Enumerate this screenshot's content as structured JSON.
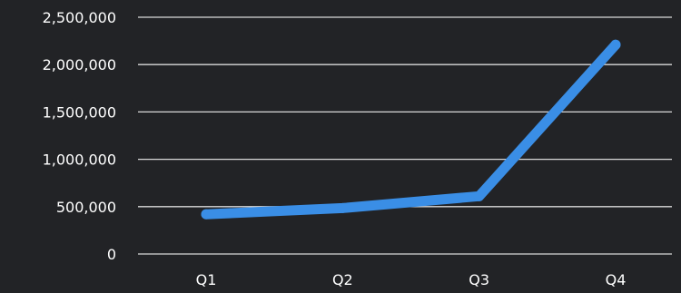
{
  "chart_data": {
    "type": "line",
    "categories": [
      "Q1",
      "Q2",
      "Q3",
      "Q4"
    ],
    "series": [
      {
        "values": [
          420000,
          485000,
          610000,
          2210000
        ]
      }
    ],
    "ylim": [
      0,
      2500000
    ],
    "yticks": [
      {
        "value": 0,
        "label": "0"
      },
      {
        "value": 500000,
        "label": "500,000"
      },
      {
        "value": 1000000,
        "label": "1,000,000"
      },
      {
        "value": 1500000,
        "label": "1,500,000"
      },
      {
        "value": 2000000,
        "label": "2,000,000"
      },
      {
        "value": 2500000,
        "label": "2,500,000"
      }
    ],
    "grid": true,
    "legend": "none",
    "colors": {
      "background": "#222326",
      "line": "#3a8ee6",
      "grid": "#d9d9d9",
      "text": "#ffffff"
    }
  }
}
